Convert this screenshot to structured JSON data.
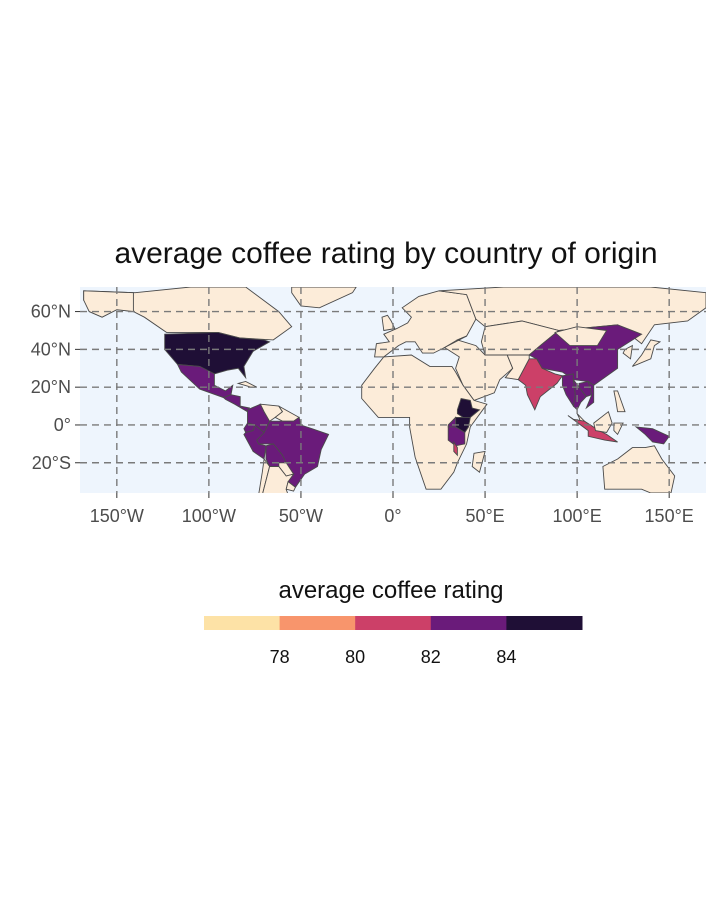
{
  "title": "average coffee rating by country of origin",
  "map": {
    "ocean_color": "#eef5fd",
    "land_color": "#fcecd9",
    "border_color": "#4a4a4a",
    "lon_ticks": [
      {
        "value": -150,
        "label": "150°W"
      },
      {
        "value": -100,
        "label": "100°W"
      },
      {
        "value": -50,
        "label": "50°W"
      },
      {
        "value": 0,
        "label": "0°"
      },
      {
        "value": 50,
        "label": "50°E"
      },
      {
        "value": 100,
        "label": "100°E"
      },
      {
        "value": 150,
        "label": "150°E"
      }
    ],
    "lat_ticks": [
      {
        "value": 60,
        "label": "60°N"
      },
      {
        "value": 40,
        "label": "40°N"
      },
      {
        "value": 20,
        "label": "20°N"
      },
      {
        "value": 0,
        "label": "0°"
      },
      {
        "value": -20,
        "label": "20°S"
      }
    ],
    "lon_range": [
      -170,
      170
    ],
    "lat_range": [
      -36,
      73
    ]
  },
  "legend": {
    "title": "average coffee rating",
    "colors": [
      "#fde2a6",
      "#f8956c",
      "#cc4068",
      "#6a1b7a",
      "#1f0f36"
    ],
    "labels": [
      "78",
      "80",
      "82",
      "84"
    ]
  },
  "chart_data": {
    "type": "choropleth",
    "value_label": "average coffee rating",
    "regions": [
      {
        "name": "United States",
        "rating_band": "84+"
      },
      {
        "name": "Mexico",
        "rating_band": "82-84"
      },
      {
        "name": "Central America",
        "rating_band": "82-84"
      },
      {
        "name": "Brazil",
        "rating_band": "82-84"
      },
      {
        "name": "Colombia",
        "rating_band": "82-84"
      },
      {
        "name": "Peru",
        "rating_band": "82-84"
      },
      {
        "name": "Bolivia",
        "rating_band": "82-84"
      },
      {
        "name": "Ecuador",
        "rating_band": "82-84"
      },
      {
        "name": "Ethiopia",
        "rating_band": "84+"
      },
      {
        "name": "Kenya",
        "rating_band": "84+"
      },
      {
        "name": "Uganda",
        "rating_band": "82-84"
      },
      {
        "name": "Tanzania",
        "rating_band": "82-84"
      },
      {
        "name": "Malawi",
        "rating_band": "80-82"
      },
      {
        "name": "India",
        "rating_band": "80-82"
      },
      {
        "name": "China",
        "rating_band": "82-84"
      },
      {
        "name": "Myanmar",
        "rating_band": "82-84"
      },
      {
        "name": "Thailand",
        "rating_band": "82-84"
      },
      {
        "name": "Laos",
        "rating_band": "82-84"
      },
      {
        "name": "Vietnam",
        "rating_band": "82-84"
      },
      {
        "name": "Indonesia",
        "rating_band": "80-82"
      },
      {
        "name": "Papua New Guinea",
        "rating_band": "82-84"
      }
    ]
  }
}
